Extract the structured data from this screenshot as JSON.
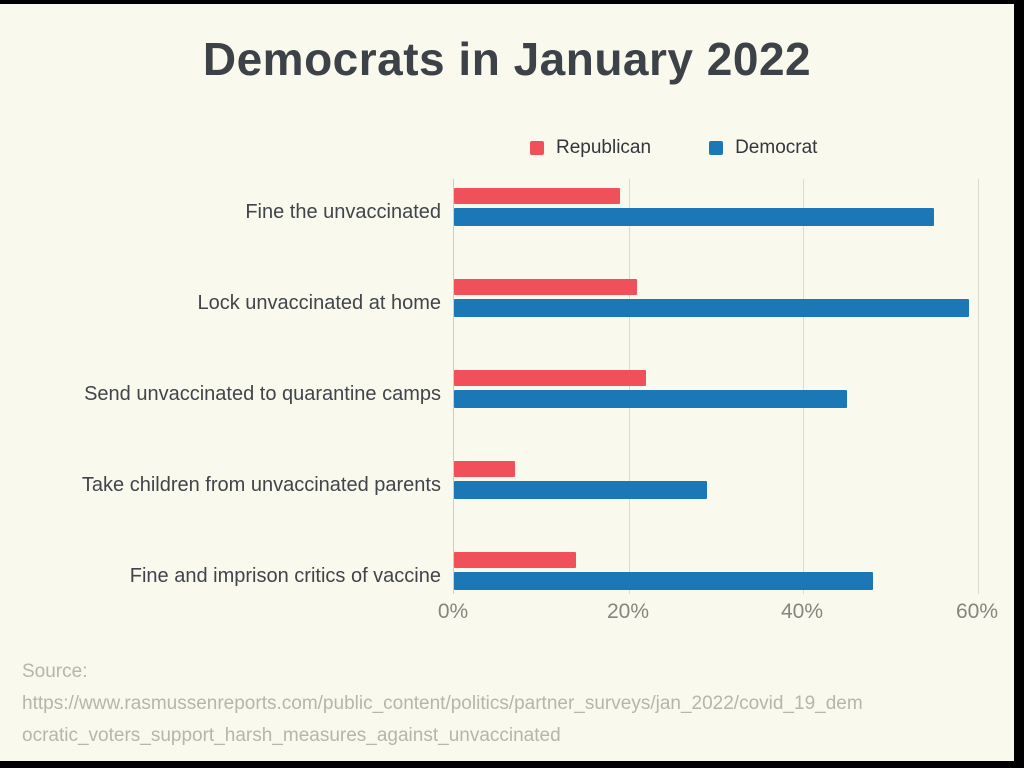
{
  "title": "Democrats in January 2022",
  "source": {
    "label": "Source:",
    "url_line1": "https://www.rasmussenreports.com/public_content/politics/partner_surveys/jan_2022/covid_19_dem",
    "url_line2": "ocratic_voters_support_harsh_measures_against_unvaccinated"
  },
  "colors": {
    "republican": "#f0505a",
    "democrat": "#1b77b6",
    "background": "#faf9ee",
    "gridline": "#dcdbd1",
    "title_text": "#3d4148",
    "axis_text": "#85867e",
    "source_text": "#b7b5ac",
    "frame": "#000000"
  },
  "chart_data": {
    "type": "bar",
    "orientation": "horizontal",
    "title": "Democrats in January 2022",
    "categories": [
      "Fine the unvaccinated",
      "Lock unvaccinated at home",
      "Send unvaccinated to quarantine camps",
      "Take children from unvaccinated parents",
      "Fine and imprison critics of vaccine"
    ],
    "series": [
      {
        "name": "Republican",
        "color": "#f0505a",
        "values": [
          19,
          21,
          22,
          7,
          14
        ]
      },
      {
        "name": "Democrat",
        "color": "#1b77b6",
        "values": [
          55,
          59,
          45,
          29,
          48
        ]
      }
    ],
    "xlabel": "",
    "ylabel": "",
    "xlim": [
      0,
      63
    ],
    "x_ticks": [
      "0%",
      "20%",
      "40%",
      "60%"
    ],
    "x_tick_values": [
      0,
      20,
      40,
      60
    ],
    "grid": "vertical",
    "legend_position": "top-right",
    "unit": "percent"
  }
}
